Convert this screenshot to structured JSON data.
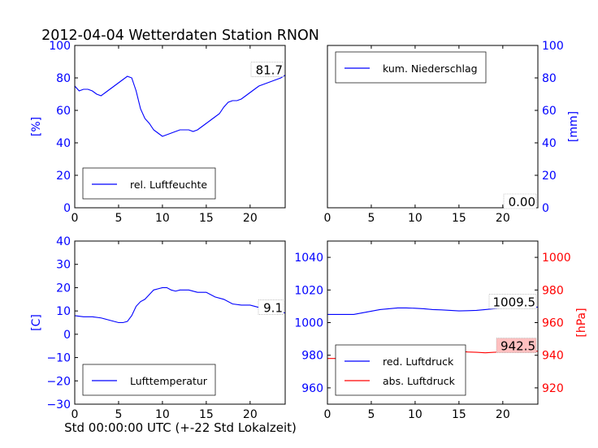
{
  "title": "2012-04-04 Wetterdaten Station RNON",
  "xlabel": "Std 00:00:00 UTC (+-22 Std Lokalzeit)",
  "colors": {
    "primary": "#0000ff",
    "secondary": "#ff0000",
    "text": "#000000",
    "annotation_bg": "#ffc0c0"
  },
  "chart_data": [
    {
      "id": "humidity",
      "type": "line",
      "ylabel": "[%]",
      "xlim": [
        0,
        24
      ],
      "ylim": [
        0,
        100
      ],
      "xticks": [
        "0",
        "5",
        "10",
        "15",
        "20"
      ],
      "yticks": [
        "0",
        "20",
        "40",
        "60",
        "80",
        "100"
      ],
      "legend_position": "lower-left",
      "annotation": "81.7",
      "series": [
        {
          "name": "rel. Luftfeuchte",
          "color": "#0000ff",
          "x": [
            0,
            0.5,
            1,
            1.5,
            2,
            2.5,
            3,
            3.5,
            4,
            4.5,
            5,
            5.5,
            6,
            6.5,
            7,
            7.5,
            8,
            8.5,
            9,
            9.5,
            10,
            10.5,
            11,
            11.5,
            12,
            12.5,
            13,
            13.5,
            14,
            14.5,
            15,
            15.5,
            16,
            16.5,
            17,
            17.5,
            18,
            18.5,
            19,
            19.5,
            20,
            20.5,
            21,
            21.5,
            22,
            22.5,
            23,
            23.5,
            24
          ],
          "y": [
            75,
            72,
            73,
            73,
            72,
            70,
            69,
            71,
            73,
            75,
            77,
            79,
            81,
            80,
            72,
            61,
            55,
            52,
            48,
            46,
            44,
            45,
            46,
            47,
            48,
            48,
            48,
            47,
            48,
            50,
            52,
            54,
            56,
            58,
            62,
            65,
            66,
            66,
            67,
            69,
            71,
            73,
            75,
            76,
            77,
            78,
            79,
            80,
            81.7
          ]
        }
      ]
    },
    {
      "id": "precipitation",
      "type": "line",
      "ylabel": "[mm]",
      "xlim": [
        0,
        24
      ],
      "ylim": [
        0,
        100
      ],
      "xticks": [
        "0",
        "5",
        "10",
        "15",
        "20"
      ],
      "yticks": [
        "0",
        "20",
        "40",
        "60",
        "80",
        "100"
      ],
      "legend_position": "upper-left",
      "annotation": "0.00",
      "series": [
        {
          "name": "kum. Niederschlag",
          "color": "#0000ff",
          "x": [
            0,
            24
          ],
          "y": [
            0,
            0
          ]
        }
      ]
    },
    {
      "id": "temperature",
      "type": "line",
      "ylabel": "[C]",
      "xlim": [
        0,
        24
      ],
      "ylim": [
        -30,
        40
      ],
      "xticks": [
        "0",
        "5",
        "10",
        "15",
        "20"
      ],
      "yticks": [
        "−30",
        "−20",
        "−10",
        "0",
        "10",
        "20",
        "30",
        "40"
      ],
      "legend_position": "lower-left",
      "annotation": "9.1",
      "series": [
        {
          "name": "Lufttemperatur",
          "color": "#0000ff",
          "x": [
            0,
            1,
            2,
            3,
            4,
            5,
            5.5,
            6,
            6.5,
            7,
            7.5,
            8,
            8.5,
            9,
            9.5,
            10,
            10.5,
            11,
            11.5,
            12,
            13,
            14,
            15,
            16,
            17,
            18,
            19,
            20,
            21,
            22,
            23,
            24
          ],
          "y": [
            8,
            7.5,
            7.5,
            7,
            6,
            5,
            5,
            5.5,
            8,
            12,
            14,
            15,
            17,
            19,
            19.5,
            20,
            20,
            19,
            18.5,
            19,
            19,
            18,
            18,
            16,
            15,
            13,
            12.5,
            12.5,
            11.5,
            11,
            10,
            9.1
          ]
        }
      ]
    },
    {
      "id": "pressure",
      "type": "line",
      "ylabel_right": "[hPa]",
      "xlim": [
        0,
        24
      ],
      "ylim": [
        950,
        1050
      ],
      "ylim_right": [
        910,
        1010
      ],
      "xticks": [
        "0",
        "5",
        "10",
        "15",
        "20"
      ],
      "yticks": [
        "960",
        "980",
        "1000",
        "1020",
        "1040"
      ],
      "yticks_right": [
        "920",
        "940",
        "960",
        "980",
        "1000"
      ],
      "legend_position": "lower-left",
      "annotations": [
        "1009.5",
        "942.5"
      ],
      "series": [
        {
          "name": "red. Luftdruck",
          "color": "#0000ff",
          "axis": "left",
          "x": [
            0,
            1,
            2,
            3,
            4,
            5,
            6,
            7,
            8,
            9,
            10,
            11,
            12,
            13,
            14,
            15,
            16,
            17,
            18,
            19,
            20,
            21,
            22,
            23,
            24
          ],
          "y": [
            1005,
            1005,
            1005,
            1005,
            1006,
            1007,
            1008,
            1008.5,
            1009,
            1009,
            1008.8,
            1008.5,
            1008,
            1007.8,
            1007.5,
            1007.2,
            1007.3,
            1007.5,
            1008,
            1008.5,
            1009,
            1009.2,
            1009.3,
            1009.4,
            1009.5
          ]
        },
        {
          "name": "abs. Luftdruck",
          "color": "#ff0000",
          "axis": "right",
          "x": [
            0,
            1,
            2,
            3,
            4,
            5,
            6,
            7,
            8,
            9,
            10,
            11,
            12,
            13,
            14,
            15,
            16,
            17,
            18,
            19,
            20,
            21,
            22,
            23,
            24
          ],
          "y": [
            938,
            938,
            938,
            938,
            938.5,
            939.5,
            940,
            941,
            942.5,
            943.5,
            943.8,
            943.5,
            943,
            943,
            942.8,
            942.5,
            942,
            941.8,
            941.5,
            941.8,
            942,
            942.2,
            942.3,
            942.4,
            942.5
          ]
        }
      ]
    }
  ]
}
